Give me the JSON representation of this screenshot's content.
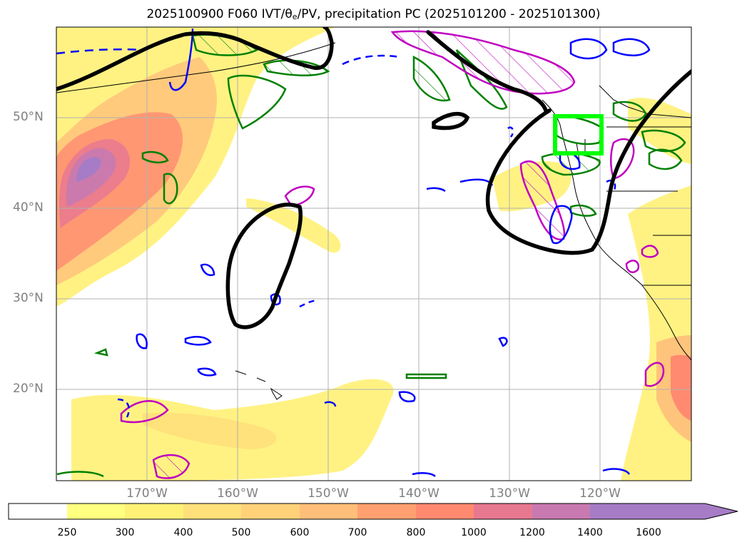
{
  "title": {
    "prefix": "2025100900 F060 IVT/θ",
    "sub": "e",
    "suffix": "/PV, precipitation PC (2025101200 - 2025101300)"
  },
  "lat_labels": [
    "50°N",
    "40°N",
    "30°N",
    "20°N"
  ],
  "lon_labels": [
    "170°W",
    "160°W",
    "150°W",
    "140°W",
    "130°W",
    "120°W"
  ],
  "colorbar": {
    "levels": [
      "250",
      "300",
      "400",
      "500",
      "600",
      "700",
      "800",
      "1000",
      "1200",
      "1400",
      "1600"
    ],
    "colors": [
      "#ffffff",
      "#ffff80",
      "#fff176",
      "#ffe07a",
      "#ffd27a",
      "#ffbf7a",
      "#ffa070",
      "#ff8a70",
      "#e87890",
      "#c87ab0",
      "#a67cc6"
    ]
  },
  "legend_colors": {
    "ivt_fill_peak": "#a67cc6",
    "theta_e_contour": "#000000",
    "pv_contour_solid": "#0000ff",
    "green_contour": "#008000",
    "magenta_contour": "#c000c0",
    "target_box": "#00ff00"
  }
}
